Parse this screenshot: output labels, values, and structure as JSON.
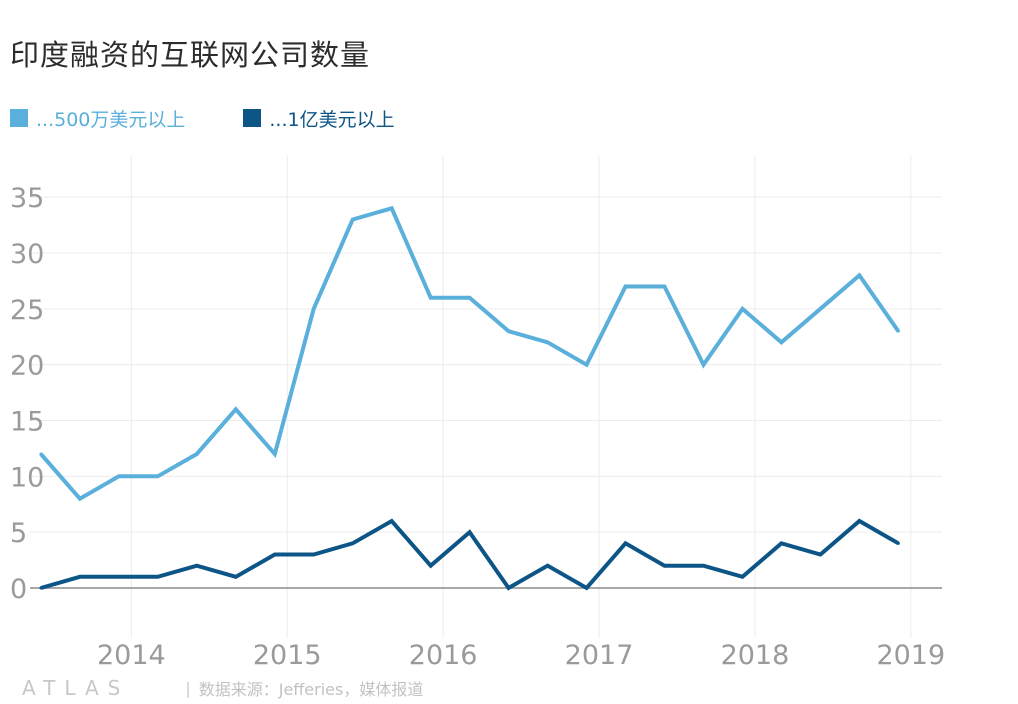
{
  "title": "印度融资的互联网公司数量",
  "footer": {
    "brand": "ATLAS",
    "source": "数据来源：Jefferies，媒体报道"
  },
  "chart_data": {
    "type": "line",
    "title": "印度融资的互联网公司数量",
    "xlabel": "",
    "ylabel": "",
    "x": [
      2013.42,
      2013.67,
      2013.92,
      2014.17,
      2014.42,
      2014.67,
      2014.92,
      2015.17,
      2015.42,
      2015.67,
      2015.92,
      2016.17,
      2016.42,
      2016.67,
      2016.92,
      2017.17,
      2017.42,
      2017.67,
      2017.92,
      2018.17,
      2018.42,
      2018.67,
      2018.92
    ],
    "xticks": [
      "2014",
      "2015",
      "2016",
      "2017",
      "2018",
      "2019"
    ],
    "xtick_values": [
      2014,
      2015,
      2016,
      2017,
      2018,
      2019
    ],
    "xlim": [
      2013.35,
      2019.2
    ],
    "ylim": [
      0,
      36
    ],
    "yticks": [
      0,
      5,
      10,
      15,
      20,
      25,
      30,
      35
    ],
    "grid": true,
    "legend_position": "top-left",
    "series": [
      {
        "name": "...500万美元以上",
        "color": "#5aafdb",
        "values": [
          12,
          8,
          10,
          10,
          12,
          16,
          12,
          25,
          33,
          34,
          26,
          26,
          23,
          22,
          20,
          27,
          27,
          20,
          25,
          22,
          25,
          28,
          23
        ]
      },
      {
        "name": "...1亿美元以上",
        "color": "#0d5586",
        "values": [
          0,
          1,
          1,
          1,
          2,
          1,
          3,
          3,
          4,
          6,
          2,
          5,
          0,
          2,
          0,
          4,
          2,
          2,
          1,
          4,
          3,
          6,
          4
        ]
      }
    ]
  }
}
